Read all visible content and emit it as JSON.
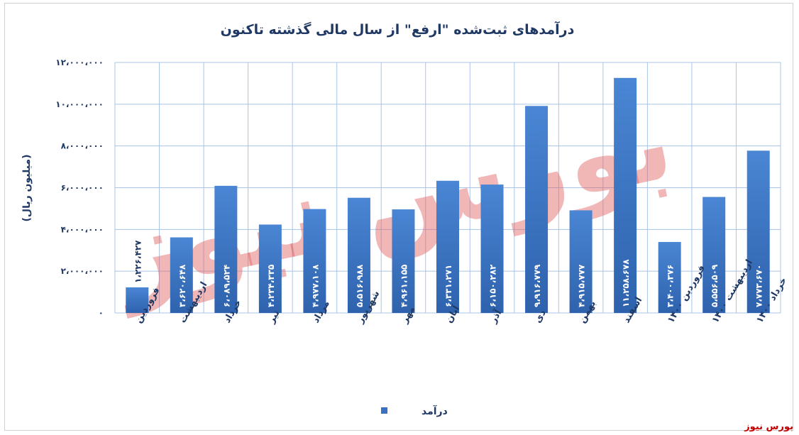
{
  "chart_data": {
    "type": "bar",
    "title": "درآمدهای ثبت‌شده \"ارفع\" از سال مالی گذشته تاکنون",
    "ylabel": "(میلیون ریال)",
    "ylim": [
      0,
      12000000
    ],
    "yticks": [
      0,
      2000000,
      4000000,
      6000000,
      8000000,
      10000000,
      12000000
    ],
    "ytick_labels": [
      "۰",
      "۲،۰۰۰،۰۰۰",
      "۴،۰۰۰،۰۰۰",
      "۶،۰۰۰،۰۰۰",
      "۸،۰۰۰،۰۰۰",
      "۱۰،۰۰۰،۰۰۰",
      "۱۲،۰۰۰،۰۰۰"
    ],
    "grid": true,
    "legend_position": "bottom",
    "categories": [
      "فروردین",
      "اردیبهشت",
      "خرداد",
      "تیر",
      "مرداد",
      "شهریور",
      "مهر",
      "آبان",
      "آذر",
      "دی",
      "بهمن",
      "اسفند",
      "فروردین ۱۴۰۰",
      "اردیبهشت ۱۴۰۰",
      "خرداد ۱۴۰۰"
    ],
    "series": [
      {
        "name": "درآمد",
        "color": "#3a72c2",
        "values": [
          1226427,
          3620648,
          6089524,
          4234335,
          4977108,
          5516988,
          4961155,
          6331271,
          6150282,
          9916779,
          4915777,
          11258678,
          3400376,
          5556509,
          7773670
        ],
        "data_labels": [
          "۱،۲۲۶،۴۲۷",
          "۳،۶۲۰،۶۴۸",
          "۶،۰۸۹،۵۲۴",
          "۴،۲۳۴،۳۳۵",
          "۴،۹۷۷،۱۰۸",
          "۵،۵۱۶،۹۸۸",
          "۴،۹۶۱،۱۵۵",
          "۶،۳۳۱،۲۷۱",
          "۶،۱۵۰،۲۸۲",
          "۹،۹۱۶،۷۷۹",
          "۴،۹۱۵،۷۷۷",
          "۱۱،۲۵۸،۶۷۸",
          "۳،۴۰۰،۳۷۶",
          "۵،۵۵۶،۵۰۹",
          "۷،۷۷۳،۶۷۰"
        ]
      }
    ]
  },
  "watermark": "بورس نیوز",
  "source": "بورس نیوز"
}
